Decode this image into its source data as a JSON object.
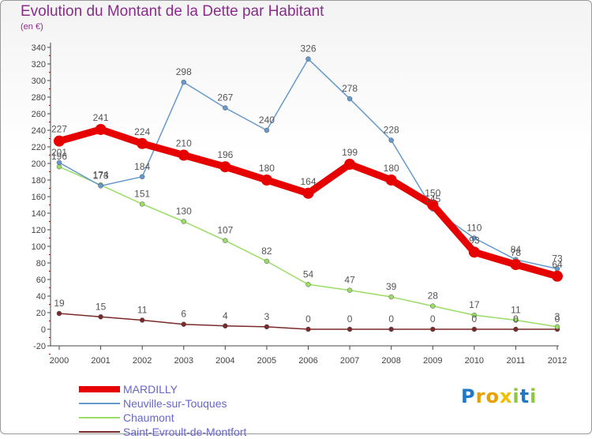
{
  "header": {
    "title": "Evolution du Montant de la Dette par Habitant",
    "subtitle": "(en €)"
  },
  "logo": {
    "text": "Proxiti",
    "letter_colors": [
      "#1f78c8",
      "#e8a000",
      "#e8a000",
      "#f0c000",
      "#8dc63f",
      "#1f78c8",
      "#8dc63f"
    ]
  },
  "chart_data": {
    "type": "line",
    "x": [
      2000,
      2001,
      2002,
      2003,
      2004,
      2005,
      2006,
      2007,
      2008,
      2009,
      2010,
      2011,
      2012
    ],
    "ylim": [
      -20,
      340
    ],
    "yticks": [
      -20,
      0,
      20,
      40,
      60,
      80,
      100,
      120,
      140,
      160,
      180,
      200,
      220,
      240,
      260,
      280,
      300,
      320,
      340
    ],
    "grid": false,
    "legend_position": "bottom",
    "series": [
      {
        "name": "MARDILLY",
        "color": "#e60000",
        "values": [
          227,
          241,
          224,
          210,
          196,
          180,
          164,
          199,
          180,
          150,
          93,
          78,
          64
        ]
      },
      {
        "name": "Neuville-sur-Touques",
        "color": "#6699cc",
        "values": [
          201,
          173,
          184,
          298,
          267,
          240,
          326,
          278,
          228,
          145,
          110,
          84,
          73
        ]
      },
      {
        "name": "Chaumont",
        "color": "#99dd66",
        "values": [
          196,
          174,
          151,
          130,
          107,
          82,
          54,
          47,
          39,
          28,
          17,
          11,
          3
        ]
      },
      {
        "name": "Saint-Evroult-de-Montfort",
        "color": "#7a2a2a",
        "values": [
          19,
          15,
          11,
          6,
          4,
          3,
          0,
          0,
          0,
          0,
          0,
          0,
          0
        ]
      }
    ]
  }
}
